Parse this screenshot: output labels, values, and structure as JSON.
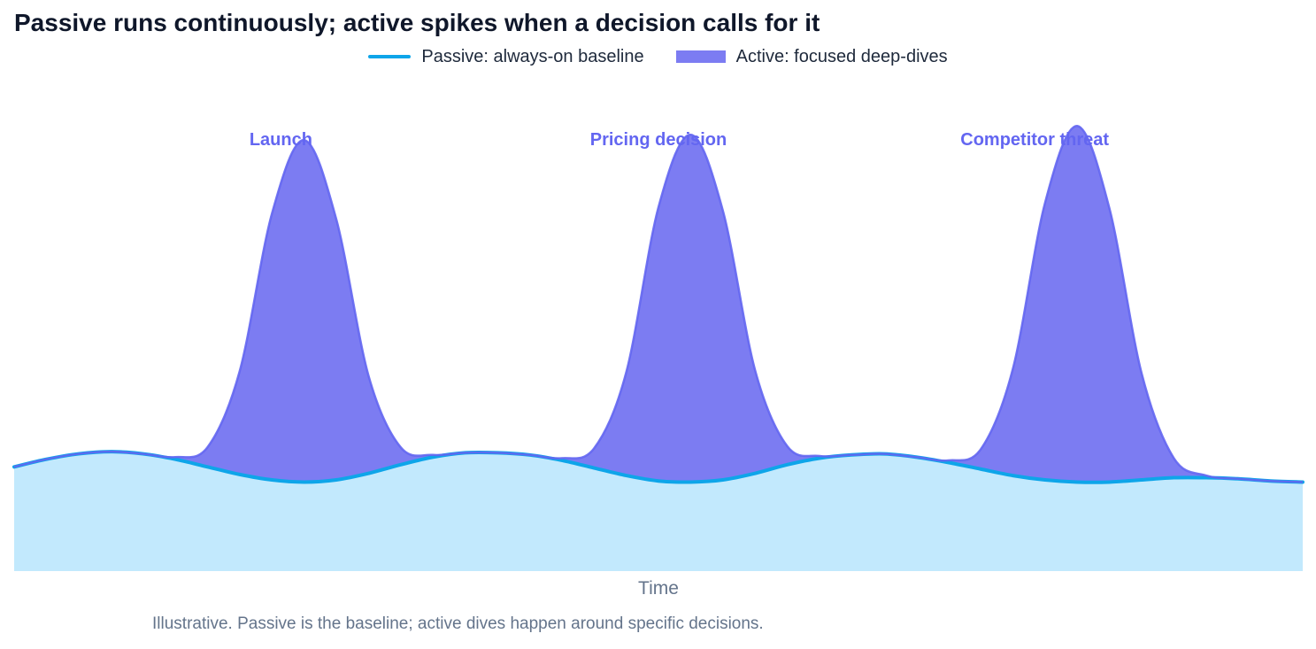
{
  "chart_data": {
    "type": "area",
    "title": "Passive runs continuously; active spikes when a decision calls for it",
    "xlabel": "Time",
    "ylabel": "",
    "grid": false,
    "legend_position": "top-center",
    "x": [
      0,
      0.25,
      0.5,
      0.75,
      1.0,
      1.25,
      1.5,
      1.75,
      2.0,
      2.25,
      2.5,
      2.75,
      3.0,
      3.25,
      3.5,
      3.75,
      4.0,
      4.25,
      4.5,
      4.75,
      5.0,
      5.25,
      5.5,
      5.75,
      6.0,
      6.25,
      6.5,
      6.75,
      7.0,
      7.25,
      7.5,
      7.75,
      8.0,
      8.25,
      8.5,
      8.75,
      9.0,
      9.25,
      9.5,
      9.75,
      10.0
    ],
    "ylim": [
      0,
      4.2
    ],
    "series": [
      {
        "name": "Passive: always-on baseline",
        "type": "line-area",
        "color": "#0ea5e9",
        "fill": "#bae6fd",
        "values": [
          0.96,
          1.03,
          1.08,
          1.1,
          1.08,
          1.03,
          0.96,
          0.89,
          0.84,
          0.82,
          0.84,
          0.9,
          0.98,
          1.05,
          1.09,
          1.09,
          1.07,
          1.02,
          0.95,
          0.88,
          0.83,
          0.82,
          0.84,
          0.9,
          0.98,
          1.04,
          1.07,
          1.08,
          1.05,
          1.0,
          0.94,
          0.88,
          0.84,
          0.82,
          0.82,
          0.84,
          0.86,
          0.86,
          0.85,
          0.83,
          0.82
        ]
      },
      {
        "name": "Active: focused deep-dives",
        "type": "area",
        "color": "#6366f1",
        "fill": "#7c7cf2",
        "baseline": "Passive: always-on baseline",
        "values": [
          0,
          0,
          0,
          0,
          0,
          0.02,
          0.18,
          0.95,
          2.45,
          3.15,
          2.4,
          0.9,
          0.16,
          0.02,
          0,
          0,
          0,
          0.02,
          0.18,
          0.95,
          2.52,
          3.2,
          2.48,
          0.95,
          0.17,
          0.02,
          0,
          0,
          0,
          0.02,
          0.18,
          0.98,
          2.55,
          3.28,
          2.52,
          0.98,
          0.18,
          0.02,
          0,
          0,
          0
        ]
      }
    ],
    "annotations": [
      {
        "text": "Launch",
        "x": 2.07,
        "color": "#6366f1"
      },
      {
        "text": "Pricing decision",
        "x": 5.0,
        "color": "#6366f1"
      },
      {
        "text": "Competitor threat",
        "x": 7.92,
        "color": "#6366f1"
      }
    ],
    "note": "Illustrative. Passive is the baseline; active dives happen around specific decisions."
  }
}
